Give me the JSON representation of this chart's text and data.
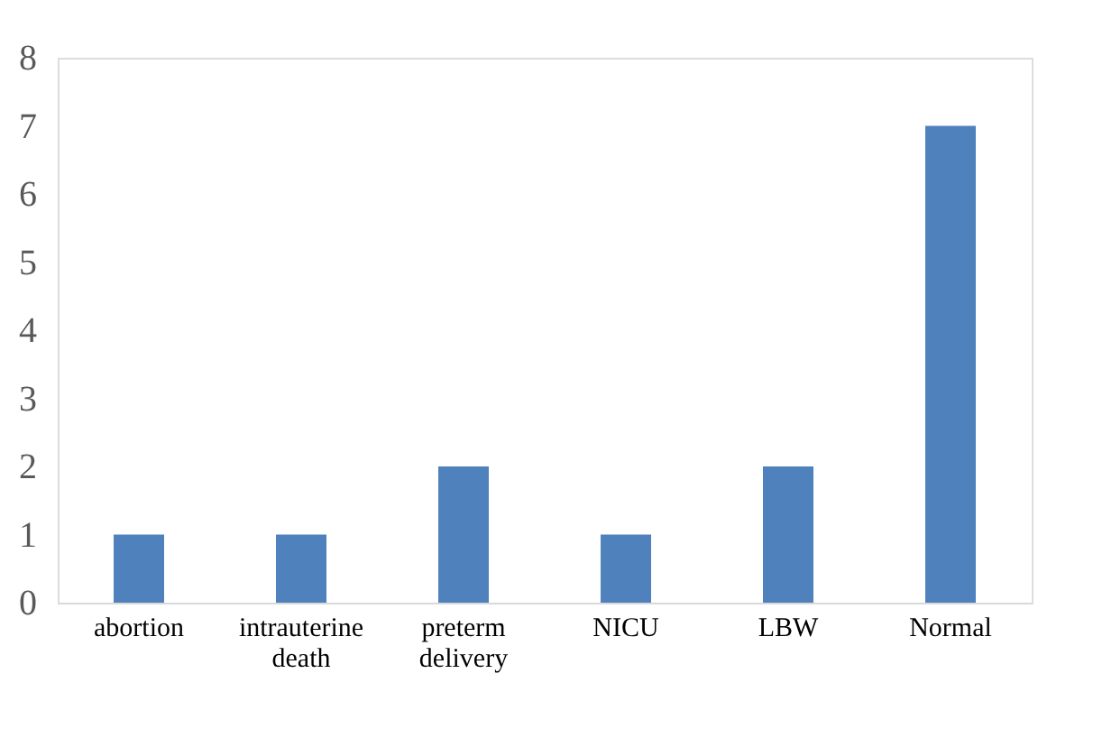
{
  "chart_data": {
    "type": "bar",
    "categories": [
      "abortion",
      "intrauterine death",
      "preterm delivery",
      "NICU",
      "LBW",
      "Normal"
    ],
    "values": [
      1,
      1,
      2,
      1,
      2,
      7
    ],
    "color": "#4f81bd",
    "ylim": [
      0,
      8
    ],
    "yticks": [
      0,
      1,
      2,
      3,
      4,
      5,
      6,
      7,
      8
    ],
    "grid": false
  }
}
